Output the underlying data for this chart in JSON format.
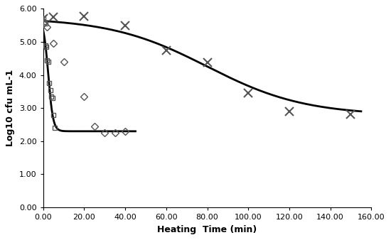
{
  "xlabel": "Heating  Time (min)",
  "ylabel": "Log10 cfu mL-1",
  "xlim": [
    0,
    160
  ],
  "ylim": [
    0,
    6.0
  ],
  "xticks": [
    0,
    20,
    40,
    60,
    80,
    100,
    120,
    140,
    160
  ],
  "yticks": [
    0.0,
    1.0,
    2.0,
    3.0,
    4.0,
    5.0,
    6.0
  ],
  "xtick_labels": [
    "0.00",
    "20.00",
    "40.00",
    "60.00",
    "80.00",
    "100.00",
    "120.00",
    "140.00",
    "160.00"
  ],
  "ytick_labels": [
    "0.00",
    "1.00",
    "2.00",
    "3.00",
    "4.00",
    "5.00",
    "6.00"
  ],
  "squares_x": [
    0.0,
    0.5,
    1.0,
    1.0,
    1.5,
    2.0,
    2.5,
    3.0,
    3.5,
    4.0,
    4.5,
    5.0,
    5.5
  ],
  "squares_y": [
    5.7,
    5.6,
    5.55,
    4.9,
    4.85,
    4.45,
    4.4,
    3.75,
    3.55,
    3.35,
    3.3,
    2.8,
    2.4
  ],
  "diamonds_x": [
    0.0,
    2.0,
    5.0,
    10.0,
    20.0,
    25.0,
    30.0,
    35.0,
    40.0
  ],
  "diamonds_y": [
    5.55,
    5.45,
    4.95,
    4.4,
    3.35,
    2.45,
    2.25,
    2.25,
    2.3
  ],
  "crosses_x": [
    0.0,
    5.0,
    20.0,
    40.0,
    60.0,
    80.0,
    100.0,
    120.0,
    150.0
  ],
  "crosses_y": [
    5.7,
    5.75,
    5.78,
    5.5,
    4.75,
    4.38,
    3.45,
    2.9,
    2.82
  ],
  "curve1_x0": 2.5,
  "curve1_k": 0.85,
  "curve1_ymin": 2.3,
  "curve1_ymax": 5.72,
  "curve1_xmax": 45,
  "curve2_x0": 80,
  "curve2_k": 0.042,
  "curve2_ymin": 2.78,
  "curve2_ymax": 5.73,
  "curve2_xmax": 155,
  "background_color": "#ffffff",
  "line_color": "#000000",
  "marker_color": "#555555"
}
